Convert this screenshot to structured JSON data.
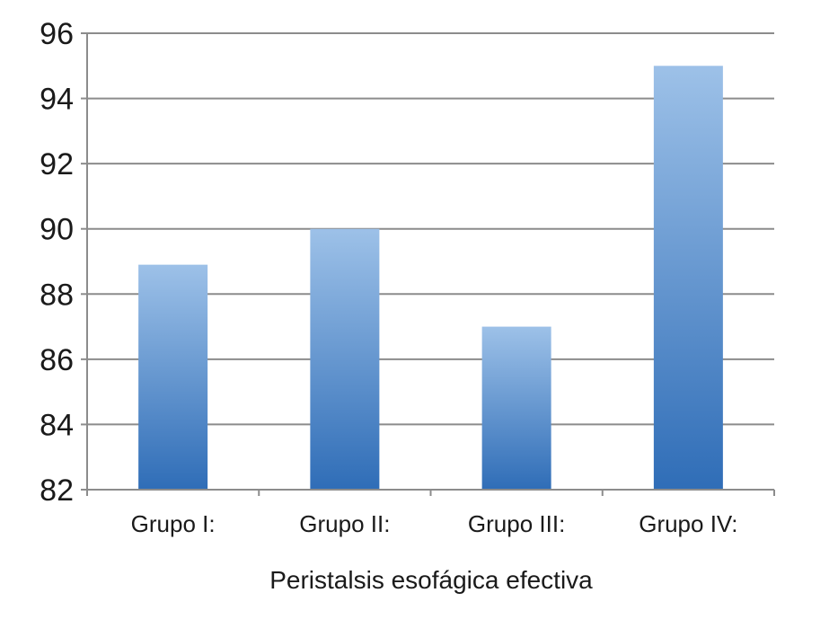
{
  "chart_data": {
    "type": "bar",
    "title": "",
    "xlabel": "Peristalsis esofágica efectiva",
    "ylabel": "",
    "categories": [
      "Grupo I:",
      "Grupo II:",
      "Grupo III:",
      "Grupo IV:"
    ],
    "values": [
      88.9,
      90.0,
      87.0,
      95.0
    ],
    "ylim": [
      82,
      96
    ],
    "yticks": [
      "82",
      "84",
      "86",
      "88",
      "90",
      "92",
      "94",
      "96"
    ],
    "grid": true,
    "legend": "none",
    "colors": {
      "bar_top": "#9dc1e8",
      "bar_bottom": "#2f6db7",
      "grid": "#8c8c8c",
      "axis": "#8c8c8c"
    }
  }
}
